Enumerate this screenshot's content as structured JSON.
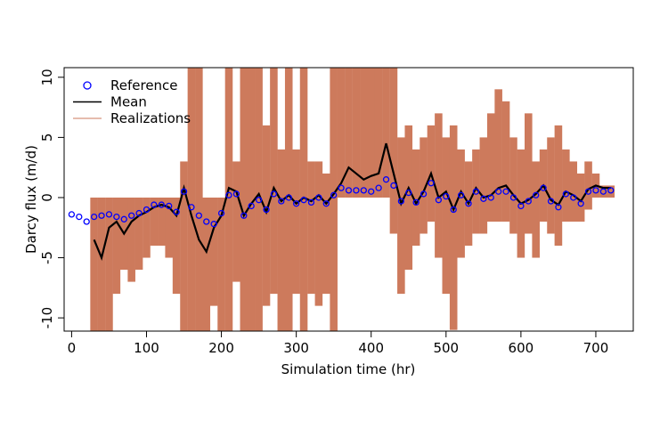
{
  "chart_data": {
    "type": "line",
    "x_label": "Simulation time (hr)",
    "y_label": "Darcy flux (m/d)",
    "x": [
      0,
      10,
      20,
      30,
      40,
      50,
      60,
      70,
      80,
      90,
      100,
      110,
      120,
      130,
      140,
      150,
      160,
      170,
      180,
      190,
      200,
      210,
      220,
      230,
      240,
      250,
      260,
      270,
      280,
      290,
      300,
      310,
      320,
      330,
      340,
      350,
      360,
      370,
      380,
      390,
      400,
      410,
      420,
      430,
      440,
      450,
      460,
      470,
      480,
      490,
      500,
      510,
      520,
      530,
      540,
      550,
      560,
      570,
      580,
      590,
      600,
      610,
      620,
      630,
      640,
      650,
      660,
      670,
      680,
      690,
      700,
      710,
      720
    ],
    "xlim": [
      -10,
      750
    ],
    "xticks": [
      0,
      100,
      200,
      300,
      400,
      500,
      600,
      700
    ],
    "ylim": [
      -11.1,
      10.8
    ],
    "yticks": [
      -10,
      -5,
      0,
      5,
      10
    ],
    "legend": "top-left",
    "series": [
      {
        "name": "Realizations",
        "color": "#cd7a5c",
        "lower": [
          null,
          null,
          null,
          -12,
          -12,
          -12,
          -8,
          -6,
          -7,
          -6,
          -5,
          -4,
          -4,
          -5,
          -8,
          -12,
          -12,
          -12,
          -12,
          -9,
          -12,
          -12,
          -7,
          -12,
          -12,
          -12,
          -9,
          -8,
          -12,
          -12,
          -8,
          -12,
          -8,
          -9,
          -8,
          -12,
          0,
          0,
          0,
          0,
          0,
          0,
          0,
          -3,
          -8,
          -6,
          -4,
          -3,
          -2,
          -5,
          -8,
          -11,
          -5,
          -4,
          -3,
          -3,
          -2,
          -2,
          -2,
          -3,
          -5,
          -3,
          -5,
          -2,
          -3,
          -4,
          -2,
          -2,
          -2,
          -1,
          0,
          0,
          0
        ],
        "upper": [
          null,
          null,
          null,
          0,
          0,
          0,
          0,
          0,
          0,
          0,
          0,
          0,
          0,
          0,
          0,
          3,
          12,
          12,
          0,
          0,
          0,
          12,
          3,
          12,
          12,
          12,
          6,
          12,
          4,
          12,
          4,
          12,
          3,
          3,
          2,
          12,
          12,
          12,
          12,
          12,
          12,
          12,
          12,
          12,
          5,
          6,
          4,
          5,
          6,
          7,
          5,
          6,
          4,
          3,
          4,
          5,
          7,
          9,
          8,
          5,
          4,
          7,
          3,
          4,
          5,
          6,
          4,
          3,
          2,
          3,
          2,
          1,
          1
        ]
      },
      {
        "name": "Mean",
        "color": "#000000",
        "values": [
          null,
          null,
          null,
          -3.5,
          -5,
          -2.5,
          -2,
          -3,
          -2,
          -1.5,
          -1.2,
          -0.8,
          -0.6,
          -0.8,
          -1.5,
          0.8,
          -1.5,
          -3.5,
          -4.5,
          -2.5,
          -1.5,
          0.8,
          0.5,
          -1.5,
          -0.5,
          0.3,
          -1.2,
          0.8,
          -0.3,
          0.2,
          -0.5,
          0,
          -0.3,
          0.2,
          -0.5,
          0.3,
          1.2,
          2.5,
          2,
          1.5,
          1.8,
          2,
          4.5,
          2,
          -0.5,
          0.8,
          -0.5,
          0.5,
          2,
          0,
          0.5,
          -1,
          0.5,
          -0.5,
          0.8,
          0,
          0.2,
          0.8,
          1,
          0.2,
          -0.5,
          -0.2,
          0.3,
          1,
          -0.2,
          -0.6,
          0.5,
          0.2,
          -0.3,
          0.7,
          1,
          0.8,
          0.8
        ]
      },
      {
        "name": "Reference",
        "color": "#0000ff",
        "values": [
          -1.4,
          -1.6,
          -2,
          -1.6,
          -1.5,
          -1.4,
          -1.6,
          -1.8,
          -1.5,
          -1.3,
          -1,
          -0.6,
          -0.6,
          -0.7,
          -1.2,
          0.5,
          -0.8,
          -1.5,
          -2,
          -2.2,
          -1.3,
          0.2,
          0.3,
          -1.5,
          -0.7,
          -0.2,
          -1,
          0.3,
          -0.3,
          0,
          -0.5,
          -0.2,
          -0.4,
          0,
          -0.5,
          0.2,
          0.8,
          0.6,
          0.6,
          0.6,
          0.5,
          0.8,
          1.5,
          1,
          -0.3,
          0.4,
          -0.4,
          0.3,
          1.2,
          -0.2,
          0.1,
          -1,
          0.2,
          -0.5,
          0.5,
          -0.1,
          0,
          0.5,
          0.5,
          0,
          -0.7,
          -0.3,
          0.2,
          0.8,
          -0.3,
          -0.8,
          0.3,
          0,
          -0.5,
          0.5,
          0.6,
          0.5,
          0.6
        ]
      }
    ]
  }
}
